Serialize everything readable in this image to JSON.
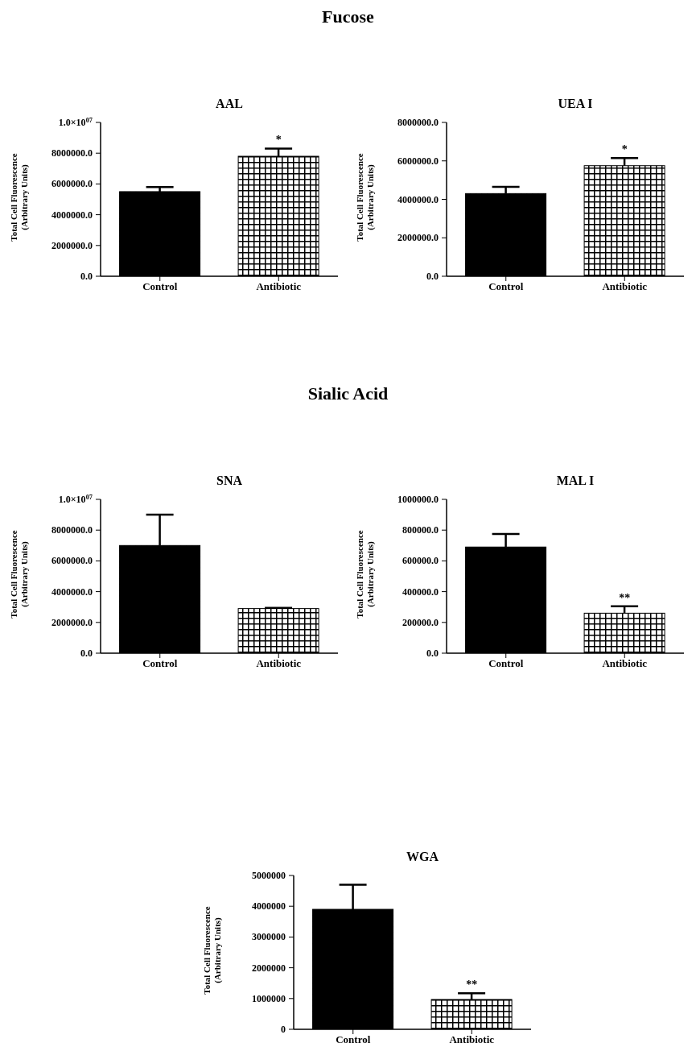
{
  "chart_data": [
    {
      "type": "bar",
      "title": "AAL",
      "ylabel": "Total Cell Fluorescence\n(Arbitrary Units)",
      "categories": [
        "Control",
        "Antibiotic"
      ],
      "values": [
        5500000,
        7800000
      ],
      "errors": [
        [
          5500000,
          5800000
        ],
        [
          7800000,
          8300000
        ]
      ],
      "colors": [
        "#000000",
        "#ffffff"
      ],
      "ylim": [
        0,
        10000000
      ],
      "yticks": [
        {
          "value": 0,
          "label": "0.0"
        },
        {
          "value": 2000000,
          "label": "2000000.0"
        },
        {
          "value": 4000000,
          "label": "4000000.0"
        },
        {
          "value": 6000000,
          "label": "6000000.0"
        },
        {
          "value": 8000000,
          "label": "8000000.0"
        },
        {
          "value": 10000000,
          "label": "1.0×10$^{07}$"
        }
      ],
      "annotations": [
        "Fucose",
        {
          "text": "*",
          "x": "Antibiotic",
          "y": 8300000
        }
      ]
    },
    {
      "type": "bar",
      "title": "UEA I",
      "ylabel": "Total Cell Fluorescence\n(Arbitrary Units)",
      "categories": [
        "Control",
        "Antibiotic"
      ],
      "values": [
        4300000,
        5750000
      ],
      "errors": [
        [
          4300000,
          4650000
        ],
        [
          5750000,
          6150000
        ]
      ],
      "colors": [
        "#000000",
        "#ffffff"
      ],
      "ylim": [
        0,
        8000000
      ],
      "yticks": [
        {
          "value": 0,
          "label": "0.0"
        },
        {
          "value": 2000000,
          "label": "2000000.0"
        },
        {
          "value": 4000000,
          "label": "4000000.0"
        },
        {
          "value": 6000000,
          "label": "6000000.0"
        },
        {
          "value": 8000000,
          "label": "8000000.0"
        }
      ],
      "annotations": [
        {
          "text": "*",
          "x": "Antibiotic",
          "y": 6150000
        }
      ]
    },
    {
      "type": "bar",
      "title": "SNA",
      "ylabel": "Total Cell Fluorescence\n(Arbitrary Units)",
      "categories": [
        "Control",
        "Antibiotic"
      ],
      "values": [
        7000000,
        2900000
      ],
      "errors": [
        [
          7000000,
          9000000
        ],
        [
          2900000,
          2950000
        ]
      ],
      "colors": [
        "#000000",
        "#ffffff"
      ],
      "ylim": [
        0,
        10000000
      ],
      "yticks": [
        {
          "value": 0,
          "label": "0.0"
        },
        {
          "value": 2000000,
          "label": "2000000.0"
        },
        {
          "value": 4000000,
          "label": "4000000.0"
        },
        {
          "value": 6000000,
          "label": "6000000.0"
        },
        {
          "value": 8000000,
          "label": "8000000.0"
        },
        {
          "value": 10000000,
          "label": "1.0×10$^{07}$"
        }
      ],
      "annotations": [
        "Sialic Acid"
      ]
    },
    {
      "type": "bar",
      "title": "MAL I",
      "ylabel": "Total Cell Fluorescence\n(Arbitrary Units)",
      "categories": [
        "Control",
        "Antibiotic"
      ],
      "values": [
        690000,
        260000
      ],
      "errors": [
        [
          690000,
          775000
        ],
        [
          260000,
          305000
        ]
      ],
      "colors": [
        "#000000",
        "#ffffff"
      ],
      "ylim": [
        0,
        1000000
      ],
      "yticks": [
        {
          "value": 0,
          "label": "0.0"
        },
        {
          "value": 200000,
          "label": "200000.0"
        },
        {
          "value": 400000,
          "label": "400000.0"
        },
        {
          "value": 600000,
          "label": "600000.0"
        },
        {
          "value": 800000,
          "label": "800000.0"
        },
        {
          "value": 1000000,
          "label": "1000000.0"
        }
      ],
      "annotations": [
        {
          "text": "**",
          "x": "Antibiotic",
          "y": 305000
        }
      ]
    },
    {
      "type": "bar",
      "title": "WGA",
      "ylabel": "Total Cell Fluorescence\n(Arbitrary Units)",
      "categories": [
        "Control",
        "Antibiotic"
      ],
      "values": [
        3900000,
        970000
      ],
      "errors": [
        [
          3900000,
          4700000
        ],
        [
          970000,
          1170000
        ]
      ],
      "colors": [
        "#000000",
        "#ffffff"
      ],
      "ylim": [
        0,
        5000000
      ],
      "yticks": [
        0,
        1000000,
        2000000,
        3000000,
        4000000,
        5000000
      ],
      "annotations": [
        {
          "text": "**",
          "x": "Antibiotic",
          "y": 1170000
        }
      ]
    }
  ]
}
